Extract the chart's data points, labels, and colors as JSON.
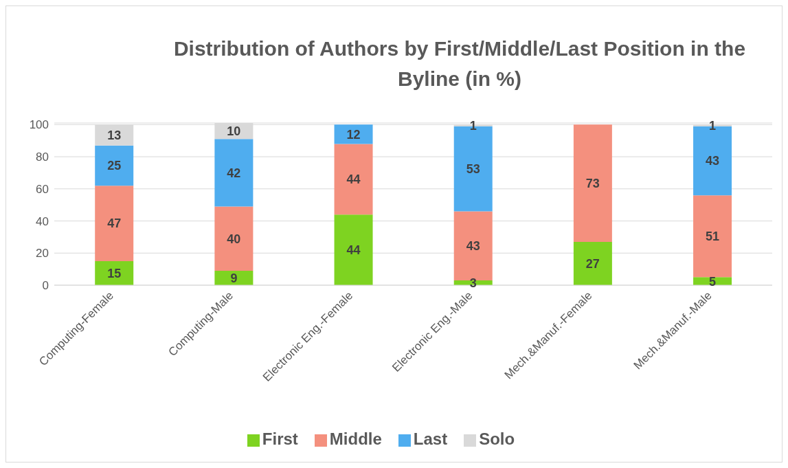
{
  "chart_data": {
    "type": "bar",
    "stacked": true,
    "title": "Distribution of Authors by First/Middle/Last Position in the Byline (in %)",
    "categories": [
      "Computing-Female",
      "Computing-Male",
      "Electronic Eng.-Female",
      "Electronic Eng.-Male",
      "Mech.&Manuf.-Female",
      "Mech.&Manuf.-Male"
    ],
    "series": [
      {
        "name": "First",
        "color": "#7ed321",
        "values": [
          15,
          9,
          44,
          3,
          27,
          5
        ]
      },
      {
        "name": "Middle",
        "color": "#f4907e",
        "values": [
          47,
          40,
          44,
          43,
          73,
          51
        ]
      },
      {
        "name": "Last",
        "color": "#4fadef",
        "values": [
          25,
          42,
          12,
          53,
          null,
          43
        ]
      },
      {
        "name": "Solo",
        "color": "#d9d9d9",
        "values": [
          13,
          10,
          null,
          1,
          null,
          1
        ]
      }
    ],
    "ylim": [
      0,
      101
    ],
    "yticks": [
      0,
      20,
      40,
      60,
      80,
      100
    ],
    "grid": "y",
    "legend": "bottom",
    "data_labels": true
  }
}
